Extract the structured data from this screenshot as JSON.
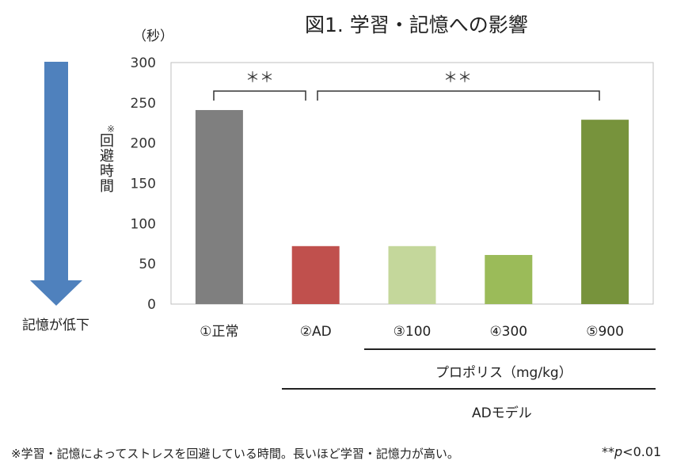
{
  "header": {
    "title": "図1. 学習・記憶への影響",
    "unit": "（秒）"
  },
  "axis": {
    "ylabel_mark": "※",
    "ylabel": "回避時間"
  },
  "arrow": {
    "label": "記憶が低下",
    "color": "#4f81bd"
  },
  "groups": {
    "propolis_label": "プロポリス（mg/kg）",
    "model_label": "ADモデル"
  },
  "significance": {
    "mark_left": "＊＊",
    "mark_right": "＊＊"
  },
  "footnote": "※学習・記憶によってストレスを回避している時間。長いほど学習・記憶力が高い。",
  "pnote": {
    "stars": "**",
    "p": "p",
    "threshold": "<0.01"
  },
  "chart_data": {
    "type": "bar",
    "categories": [
      "①正常",
      "②AD",
      "③100",
      "④300",
      "⑤900"
    ],
    "values": [
      241,
      72,
      72,
      61,
      229
    ],
    "colors": [
      "#7f7f7f",
      "#c0504d",
      "#c4d79b",
      "#9bbb59",
      "#77933c"
    ],
    "title": "図1. 学習・記憶への影響",
    "ylabel": "回避時間",
    "ylim": [
      0,
      300
    ],
    "yticks": [
      0,
      50,
      100,
      150,
      200,
      250,
      300
    ],
    "grid": false,
    "legend": "none"
  }
}
